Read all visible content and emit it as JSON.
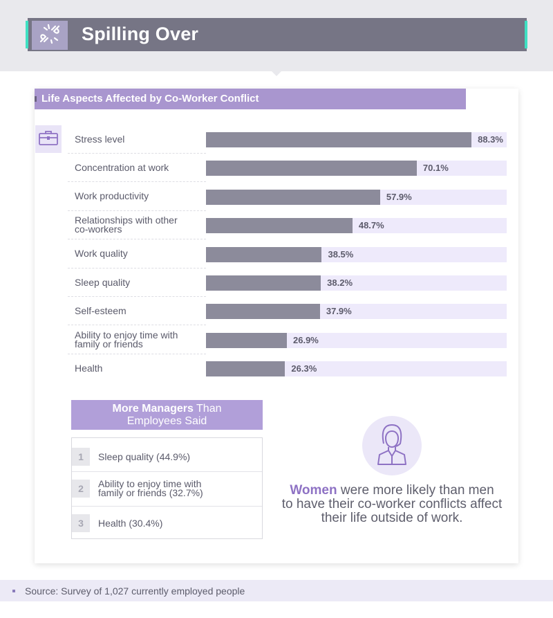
{
  "header": {
    "title": "Spilling Over",
    "icon": "broken-chain-icon",
    "colors": {
      "band": "#e9e9ed",
      "bar": "#767585",
      "accent": "#3fe0c2",
      "icon_box": "#a9a3c5"
    }
  },
  "chart_data": {
    "type": "bar",
    "orientation": "horizontal",
    "title": "Life Aspects Affected by Co-Worker Conflict",
    "categories": [
      "Stress level",
      "Concentration at work",
      "Work productivity",
      "Relationships with other co-workers",
      "Work quality",
      "Sleep quality",
      "Self-esteem",
      "Ability to enjoy time with family or friends",
      "Health"
    ],
    "category_lines": [
      [
        "Stress level"
      ],
      [
        "Concentration at work"
      ],
      [
        "Work productivity"
      ],
      [
        "Relationships with other",
        "co-workers"
      ],
      [
        "Work quality"
      ],
      [
        "Sleep quality"
      ],
      [
        "Self-esteem"
      ],
      [
        "Ability to enjoy time with",
        "family or friends"
      ],
      [
        "Health"
      ]
    ],
    "values": [
      88.3,
      70.1,
      57.9,
      48.7,
      38.5,
      38.2,
      37.9,
      26.9,
      26.3
    ],
    "value_labels": [
      "88.3%",
      "70.1%",
      "57.9%",
      "48.7%",
      "38.5%",
      "38.2%",
      "37.9%",
      "26.9%",
      "26.3%"
    ],
    "xlim": [
      0,
      100
    ],
    "grid": false,
    "colors": {
      "bar": "#8c8b9b",
      "track": "#eeeafb",
      "header": "#a996cf"
    },
    "icon": "briefcase-icon"
  },
  "managers": {
    "heading_bold": "More Managers",
    "heading_rest": " Than",
    "heading_line2": "Employees Said",
    "items": [
      {
        "num": "1",
        "lines": [
          "Sleep quality (44.9%)"
        ]
      },
      {
        "num": "2",
        "lines": [
          "Ability to enjoy time with",
          "family or friends (32.7%)"
        ]
      },
      {
        "num": "3",
        "lines": [
          "Health (30.4%)"
        ]
      }
    ]
  },
  "women_note": {
    "highlight": "Women",
    "line1_rest": " were more likely than men",
    "line2": "to have their co-worker conflicts affect",
    "line3": "their life outside of work.",
    "icon": "woman-avatar-icon"
  },
  "source": {
    "text": "Source: Survey of 1,027 currently employed people"
  }
}
